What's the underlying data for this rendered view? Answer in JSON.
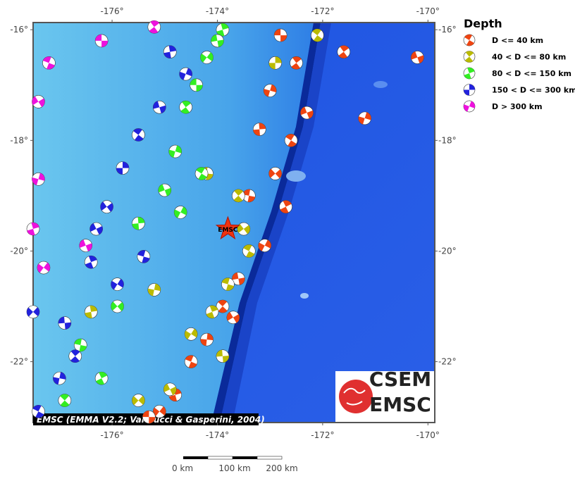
{
  "chart_data": {
    "type": "map",
    "legend_title": "Depth",
    "xlim": [
      -177.5,
      -169.87
    ],
    "ylim": [
      -23.1,
      -15.87
    ],
    "xticks": [
      {
        "value": -176,
        "label": "-176°"
      },
      {
        "value": -174,
        "label": "-174°"
      },
      {
        "value": -172,
        "label": "-172°"
      },
      {
        "value": -170,
        "label": "-170°"
      }
    ],
    "yticks": [
      {
        "value": -16,
        "label": "-16°"
      },
      {
        "value": -18,
        "label": "-18°"
      },
      {
        "value": -20,
        "label": "-20°"
      },
      {
        "value": -22,
        "label": "-22°"
      }
    ],
    "series": [
      {
        "name": "D <= 40 km",
        "color": "#ee4411",
        "lon": [
          -172.8,
          -172.5,
          -173.0,
          -172.3,
          -172.6,
          -173.2,
          -172.9,
          -173.4,
          -172.7,
          -173.1,
          -173.6,
          -173.9,
          -174.2,
          -173.7,
          -174.5,
          -174.8,
          -175.1,
          -175.3,
          -171.6,
          -171.2,
          -170.2
        ],
        "lat": [
          -16.1,
          -16.6,
          -17.1,
          -17.5,
          -18.0,
          -17.8,
          -18.6,
          -19.0,
          -19.2,
          -19.9,
          -20.5,
          -21.0,
          -21.6,
          -21.2,
          -22.0,
          -22.6,
          -22.9,
          -23.0,
          -16.4,
          -17.6,
          -16.5
        ]
      },
      {
        "name": "40 < D <= 80 km",
        "color": "#bbbb00",
        "lon": [
          -172.1,
          -172.9,
          -173.5,
          -173.8,
          -174.1,
          -174.5,
          -173.9,
          -173.6,
          -175.2,
          -174.9,
          -173.4,
          -176.4,
          -175.5,
          -174.2
        ],
        "lat": [
          -16.1,
          -16.6,
          -19.6,
          -20.6,
          -21.1,
          -21.5,
          -21.9,
          -19.0,
          -20.7,
          -22.5,
          -20.0,
          -21.1,
          -22.7,
          -18.6
        ]
      },
      {
        "name": "80 < D <= 150 km",
        "color": "#33ee22",
        "lon": [
          -173.9,
          -174.2,
          -174.4,
          -174.6,
          -174.8,
          -175.0,
          -174.3,
          -175.5,
          -175.9,
          -176.6,
          -176.2,
          -174.7,
          -174.0,
          -176.9
        ],
        "lat": [
          -16.0,
          -16.5,
          -17.0,
          -17.4,
          -18.2,
          -18.9,
          -18.6,
          -19.5,
          -21.0,
          -21.7,
          -22.3,
          -19.3,
          -16.2,
          -22.7
        ]
      },
      {
        "name": "150 < D <= 300 km",
        "color": "#2222dd",
        "lon": [
          -174.6,
          -175.1,
          -175.5,
          -175.8,
          -176.1,
          -175.4,
          -176.4,
          -175.9,
          -176.9,
          -176.7,
          -177.0,
          -176.3,
          -177.4,
          -174.9,
          -177.5
        ],
        "lat": [
          -16.8,
          -17.4,
          -17.9,
          -18.5,
          -19.2,
          -20.1,
          -20.2,
          -20.6,
          -21.3,
          -21.9,
          -22.3,
          -19.6,
          -22.9,
          -16.4,
          -21.1
        ]
      },
      {
        "name": "D > 300 km",
        "color": "#ee11dd",
        "lon": [
          -177.4,
          -177.2,
          -177.5,
          -177.3,
          -176.2,
          -175.2,
          -177.4,
          -176.5
        ],
        "lat": [
          -17.3,
          -16.6,
          -19.6,
          -20.3,
          -16.2,
          -15.95,
          -18.7,
          -19.9
        ]
      }
    ],
    "marker_label": "EMSC",
    "marker_lon": -173.8,
    "marker_lat": -19.6,
    "attribution": "EMSC (EMMA V2.2; Vannucci & Gasperini, 2004)",
    "scale_labels": [
      "0 km",
      "100 km",
      "200 km"
    ],
    "logo_lines": [
      "CSEM",
      "EMSC"
    ]
  }
}
